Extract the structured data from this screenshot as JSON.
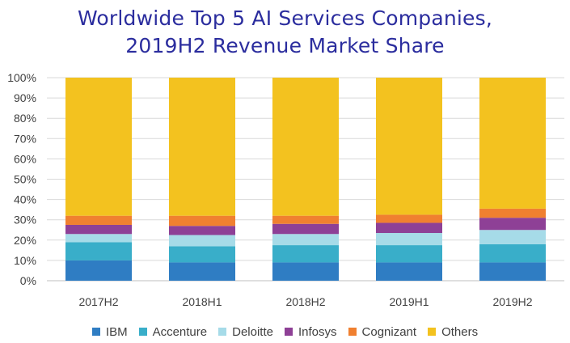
{
  "chart_data": {
    "type": "bar",
    "stacked": true,
    "title_line1": "Worldwide Top 5 AI Services Companies,",
    "title_line2": "2019H2 Revenue Market Share",
    "xlabel": "",
    "ylabel": "",
    "ylim": [
      0,
      100
    ],
    "yticks": [
      "0%",
      "10%",
      "20%",
      "30%",
      "40%",
      "50%",
      "60%",
      "70%",
      "80%",
      "90%",
      "100%"
    ],
    "grid": true,
    "legend_position": "bottom",
    "categories": [
      "2017H2",
      "2018H1",
      "2018H2",
      "2019H1",
      "2019H2"
    ],
    "series": [
      {
        "name": "IBM",
        "color": "#2f7dc3",
        "values": [
          10,
          9,
          9,
          9,
          9
        ]
      },
      {
        "name": "Accenture",
        "color": "#39aec9",
        "values": [
          9,
          8,
          8.5,
          8.5,
          9
        ]
      },
      {
        "name": "Deloitte",
        "color": "#a6dbe8",
        "values": [
          4,
          5.5,
          5.5,
          6,
          7
        ]
      },
      {
        "name": "Infosys",
        "color": "#8e4096",
        "values": [
          4.5,
          4.5,
          5,
          5,
          6
        ]
      },
      {
        "name": "Cognizant",
        "color": "#f08030",
        "values": [
          4.5,
          5,
          4,
          4,
          4.5
        ]
      },
      {
        "name": "Others",
        "color": "#f3c21f",
        "values": [
          68,
          68,
          68,
          67.5,
          64.5
        ]
      }
    ]
  }
}
